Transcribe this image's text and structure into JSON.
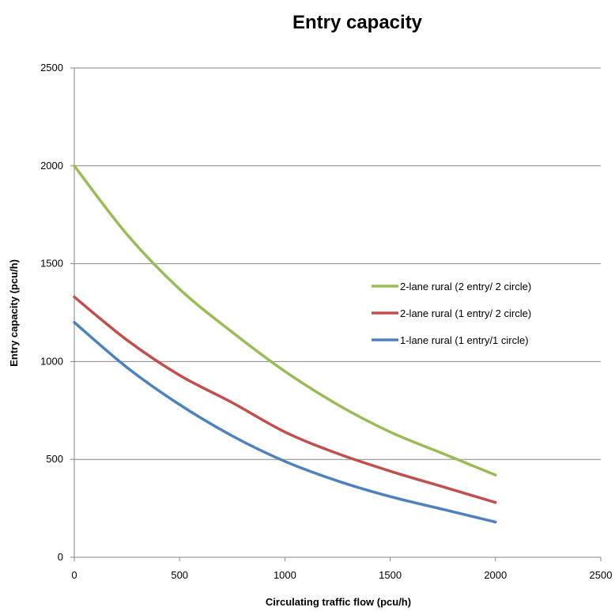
{
  "chart_data": {
    "type": "line",
    "title": "Entry capacity",
    "xlabel": "Circulating traffic flow (pcu/h)",
    "ylabel": "Entry capacity  (pcu/h)",
    "xlim": [
      0,
      2500
    ],
    "ylim": [
      0,
      2500
    ],
    "xticks": [
      "0",
      "500",
      "1000",
      "1500",
      "2000",
      "2500"
    ],
    "yticks": [
      "0",
      "500",
      "1000",
      "1500",
      "2000",
      "2500"
    ],
    "grid": "horizontal",
    "legend_position": "right",
    "x": [
      0,
      250,
      500,
      750,
      1000,
      1250,
      1500,
      1750,
      2000
    ],
    "series": [
      {
        "name": "2-lane rural (2 entry/ 2 circle)",
        "color": "#9bbb59",
        "values": [
          2000,
          1650,
          1370,
          1150,
          950,
          780,
          640,
          530,
          420
        ]
      },
      {
        "name": "2-lane rural (1 entry/ 2 circle)",
        "color": "#c0504d",
        "values": [
          1330,
          1110,
          930,
          790,
          640,
          530,
          440,
          360,
          280
        ]
      },
      {
        "name": "1-lane rural (1 entry/1 circle)",
        "color": "#4f81bd",
        "values": [
          1200,
          970,
          780,
          620,
          490,
          390,
          310,
          245,
          180
        ]
      }
    ]
  }
}
